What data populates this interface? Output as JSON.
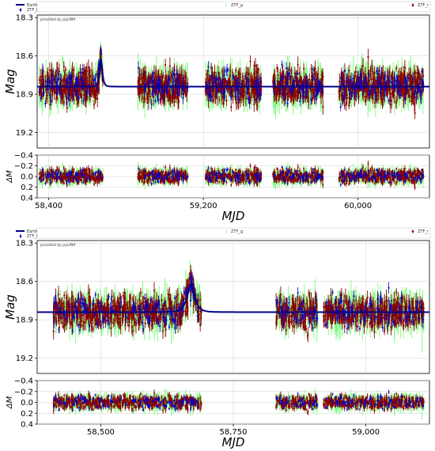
{
  "chart_data": [
    {
      "type": "scatter",
      "title": "",
      "legend": {
        "placement": "top",
        "entries": [
          "Earth",
          "ZTF_g",
          "ZTF_r",
          "ZTF_i"
        ]
      },
      "annotation": "provided by pyLIMA",
      "colors": {
        "Earth": "#00008b",
        "ZTF_g": "#7cfc7c",
        "ZTF_r": "#8b0000",
        "ZTF_i": "#0000cd"
      },
      "xlabel": "MJD",
      "ylabel": "Mag",
      "residual_ylabel": "ΔM",
      "xlim": [
        58340,
        60370
      ],
      "ylim": [
        19.32,
        18.28
      ],
      "residual_ylim": [
        0.4,
        -0.4
      ],
      "xticks": [
        58400,
        59200,
        60000
      ],
      "xtick_labels": [
        "58,400",
        "59,200",
        "60,000"
      ],
      "yticks": [
        18.3,
        18.6,
        18.9,
        19.2
      ],
      "ytick_labels": [
        "18.3",
        "18.6",
        "18.9",
        "19.2"
      ],
      "residual_yticks": [
        -0.4,
        -0.2,
        0.0,
        0.2,
        0.4
      ],
      "residual_ytick_labels": [
        "−0.4",
        "−0.2",
        "0.0",
        "0.2",
        "0.4"
      ],
      "grid": true,
      "model": {
        "name": "Earth",
        "baseline": 18.84,
        "t0": 58670,
        "peak_mag": 18.62,
        "tE": 10
      },
      "observing_seasons": [
        [
          58350,
          58680
        ],
        [
          58860,
          59120
        ],
        [
          59210,
          59500
        ],
        [
          59560,
          59820
        ],
        [
          59900,
          60340
        ]
      ]
    },
    {
      "type": "scatter",
      "title": "",
      "legend": {
        "placement": "top",
        "entries": [
          "Earth",
          "ZTF_g",
          "ZTF_r",
          "ZTF_i"
        ]
      },
      "annotation": "provided by pyLIMA",
      "colors": {
        "Earth": "#00008b",
        "ZTF_g": "#7cfc7c",
        "ZTF_r": "#8b0000",
        "ZTF_i": "#0000cd"
      },
      "xlabel": "MJD",
      "ylabel": "Mag",
      "residual_ylabel": "ΔM",
      "xlim": [
        58380,
        59120
      ],
      "ylim": [
        19.32,
        18.28
      ],
      "residual_ylim": [
        0.4,
        -0.4
      ],
      "xticks": [
        58500,
        58750,
        59000
      ],
      "xtick_labels": [
        "58,500",
        "58,750",
        "59,000"
      ],
      "yticks": [
        18.3,
        18.6,
        18.9,
        19.2
      ],
      "ytick_labels": [
        "18.3",
        "18.6",
        "18.9",
        "19.2"
      ],
      "residual_yticks": [
        -0.4,
        -0.2,
        0.0,
        0.2,
        0.4
      ],
      "residual_ytick_labels": [
        "−0.4",
        "−0.2",
        "0.0",
        "0.2",
        "0.4"
      ],
      "grid": true,
      "model": {
        "name": "Earth",
        "baseline": 18.84,
        "t0": 58670,
        "peak_mag": 18.62,
        "tE": 10
      },
      "observing_seasons": [
        [
          58410,
          58690
        ],
        [
          58830,
          58910
        ],
        [
          58920,
          59110
        ]
      ]
    }
  ]
}
